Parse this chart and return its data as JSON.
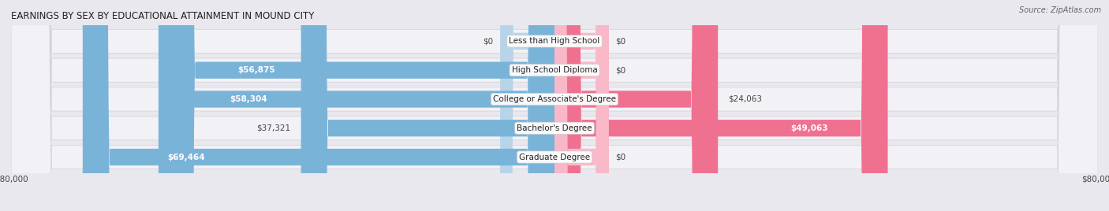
{
  "title": "EARNINGS BY SEX BY EDUCATIONAL ATTAINMENT IN MOUND CITY",
  "source": "Source: ZipAtlas.com",
  "categories": [
    "Less than High School",
    "High School Diploma",
    "College or Associate's Degree",
    "Bachelor's Degree",
    "Graduate Degree"
  ],
  "male_values": [
    0,
    56875,
    58304,
    37321,
    69464
  ],
  "female_values": [
    0,
    0,
    24063,
    49063,
    0
  ],
  "male_color": "#7ab3d8",
  "female_color": "#f07090",
  "female_zero_color": "#f8b8c8",
  "male_zero_color": "#b8d4e8",
  "axis_max": 80000,
  "bg_color": "#e8e8ee",
  "row_bg_color": "#f2f2f6",
  "row_line_color": "#d0d0d8",
  "title_fontsize": 8.5,
  "label_fontsize": 7.5,
  "cat_fontsize": 7.5,
  "tick_fontsize": 7.5,
  "source_fontsize": 7,
  "zero_bar_width": 8000
}
